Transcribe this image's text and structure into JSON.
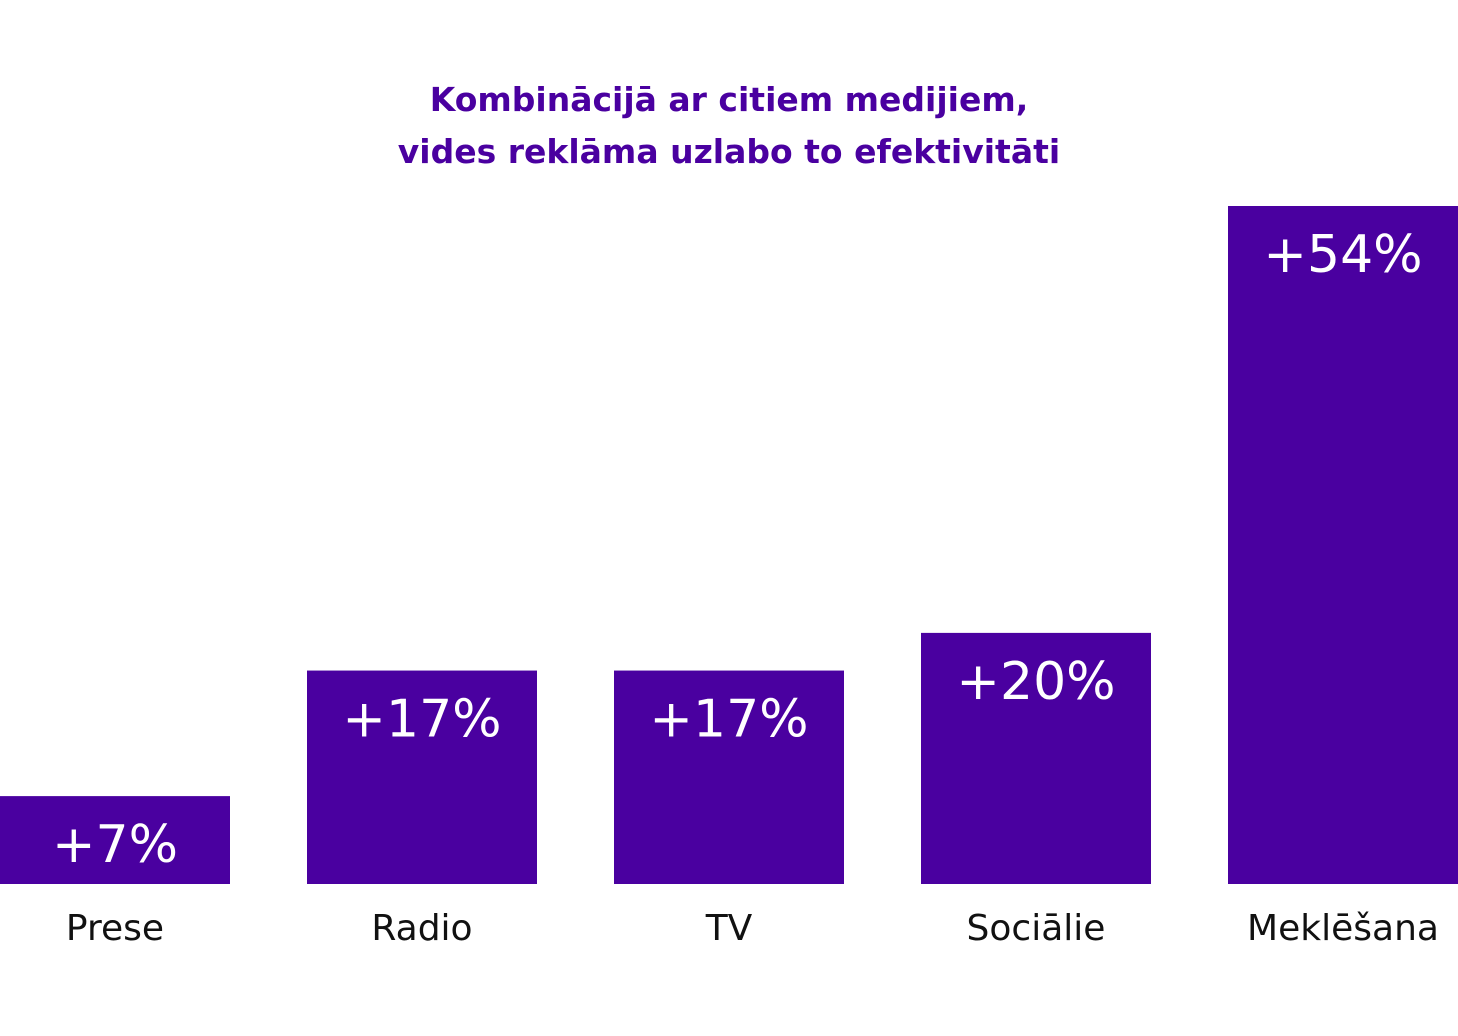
{
  "title_lines": [
    "Kombinācijā ar citiem medijiem,",
    "vides reklāma uzlabo to efektivitāti"
  ],
  "colors": {
    "bar": "#4a00a0",
    "title": "#4a00a0",
    "value_label": "#ffffff",
    "category_label": "#111111"
  },
  "chart_data": {
    "type": "bar",
    "title": "Kombinācijā ar citiem medijiem, vides reklāma uzlabo to efektivitāti",
    "categories": [
      "Prese",
      "Radio",
      "TV",
      "Sociālie",
      "Meklēšana"
    ],
    "values": [
      7,
      17,
      17,
      20,
      54
    ],
    "value_labels": [
      "+7%",
      "+17%",
      "+17%",
      "+20%",
      "+54%"
    ],
    "xlabel": "",
    "ylabel": "",
    "ylim": [
      0,
      54
    ],
    "grid": false,
    "legend": "none"
  }
}
